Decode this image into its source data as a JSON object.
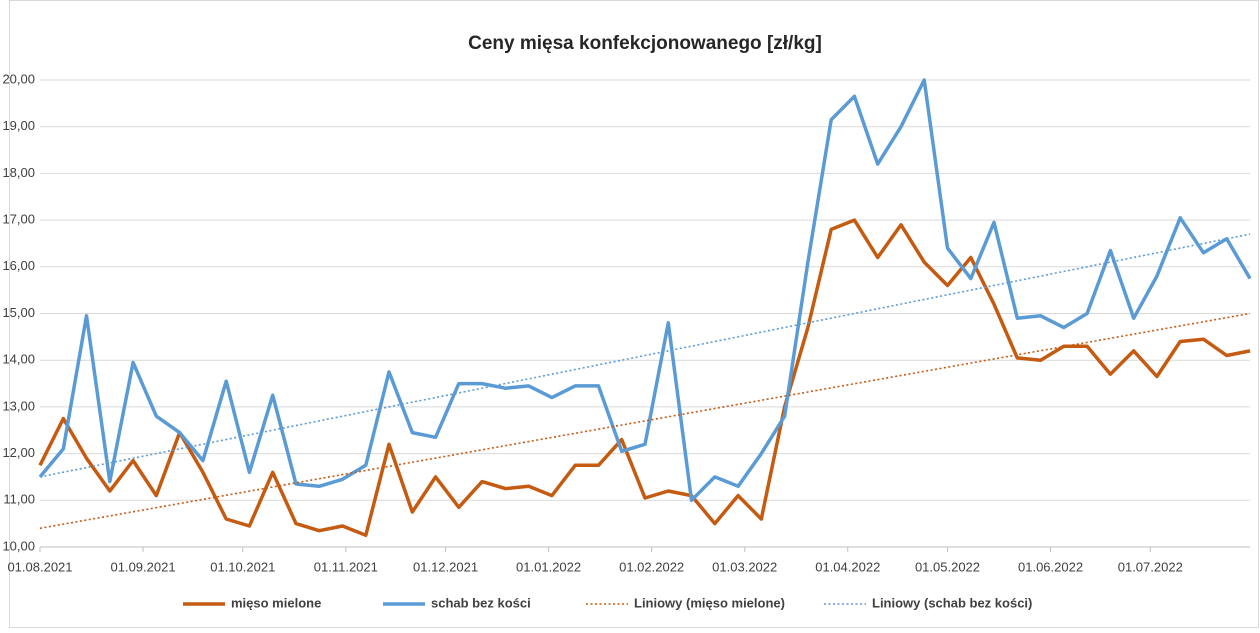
{
  "chart_data": {
    "type": "line",
    "title": "Ceny mięsa konfekcjonowanego [zł/kg]",
    "x": [
      0,
      7,
      14,
      21,
      28,
      35,
      42,
      49,
      56,
      63,
      70,
      77,
      84,
      91,
      98,
      105,
      112,
      119,
      126,
      133,
      140,
      147,
      154,
      161,
      168,
      175,
      182,
      189,
      196,
      203,
      210,
      217,
      224,
      231,
      238,
      245,
      252,
      259,
      266,
      273,
      280,
      287,
      294,
      301,
      308,
      315,
      322,
      329,
      336,
      343,
      350,
      357,
      364
    ],
    "xlim": [
      0,
      364
    ],
    "xticks": [
      {
        "value": 0,
        "label": "01.08.2021"
      },
      {
        "value": 31,
        "label": "01.09.2021"
      },
      {
        "value": 61,
        "label": "01.10.2021"
      },
      {
        "value": 92,
        "label": "01.11.2021"
      },
      {
        "value": 122,
        "label": "01.12.2021"
      },
      {
        "value": 153,
        "label": "01.01.2022"
      },
      {
        "value": 184,
        "label": "01.02.2022"
      },
      {
        "value": 212,
        "label": "01.03.2022"
      },
      {
        "value": 243,
        "label": "01.04.2022"
      },
      {
        "value": 273,
        "label": "01.05.2022"
      },
      {
        "value": 304,
        "label": "01.06.2022"
      },
      {
        "value": 334,
        "label": "01.07.2022"
      }
    ],
    "ylim": [
      10,
      20
    ],
    "yticks": [
      {
        "value": 10,
        "label": "10,00"
      },
      {
        "value": 11,
        "label": "11,00"
      },
      {
        "value": 12,
        "label": "12,00"
      },
      {
        "value": 13,
        "label": "13,00"
      },
      {
        "value": 14,
        "label": "14,00"
      },
      {
        "value": 15,
        "label": "15,00"
      },
      {
        "value": 16,
        "label": "16,00"
      },
      {
        "value": 17,
        "label": "17,00"
      },
      {
        "value": 18,
        "label": "18,00"
      },
      {
        "value": 19,
        "label": "19,00"
      },
      {
        "value": 20,
        "label": "20,00"
      }
    ],
    "grid": true,
    "legend": "bottom",
    "series": [
      {
        "name": "mięso mielone",
        "color": "#c55a11",
        "style": "solid",
        "values": [
          11.75,
          12.75,
          11.9,
          11.2,
          11.85,
          11.1,
          12.45,
          11.6,
          10.6,
          10.45,
          11.6,
          10.5,
          10.35,
          10.45,
          10.25,
          12.2,
          10.75,
          11.5,
          10.85,
          11.4,
          11.25,
          11.3,
          11.1,
          11.75,
          11.75,
          12.3,
          11.05,
          11.2,
          11.1,
          10.5,
          11.1,
          10.6,
          13.0,
          14.7,
          16.8,
          17.0,
          16.2,
          16.9,
          16.1,
          15.6,
          16.2,
          15.2,
          14.05,
          14.0,
          14.3,
          14.3,
          13.7,
          14.2,
          13.65,
          14.4,
          14.45,
          14.1,
          14.2
        ]
      },
      {
        "name": "schab bez kości",
        "color": "#5b9bd5",
        "style": "solid",
        "values": [
          11.5,
          12.1,
          14.95,
          11.4,
          13.95,
          12.8,
          12.45,
          11.85,
          13.55,
          11.6,
          13.25,
          11.35,
          11.3,
          11.45,
          11.75,
          13.75,
          12.45,
          12.35,
          13.5,
          13.5,
          13.4,
          13.45,
          13.2,
          13.45,
          13.45,
          12.05,
          12.2,
          14.8,
          11.0,
          11.5,
          11.3,
          12.0,
          12.8,
          16.1,
          19.15,
          19.65,
          18.2,
          19.0,
          20.0,
          16.4,
          15.75,
          16.95,
          14.9,
          14.95,
          14.7,
          15.0,
          16.35,
          14.9,
          15.8,
          17.05,
          16.3,
          16.6,
          15.75
        ]
      },
      {
        "name": "Liniowy (mięso mielone)",
        "color": "#c55a11",
        "style": "dotted",
        "x": [
          0,
          364
        ],
        "values": [
          10.4,
          15.0
        ]
      },
      {
        "name": "Liniowy (schab bez kości)",
        "color": "#5b9bd5",
        "style": "dotted",
        "x": [
          0,
          364
        ],
        "values": [
          11.5,
          16.7
        ]
      }
    ]
  }
}
